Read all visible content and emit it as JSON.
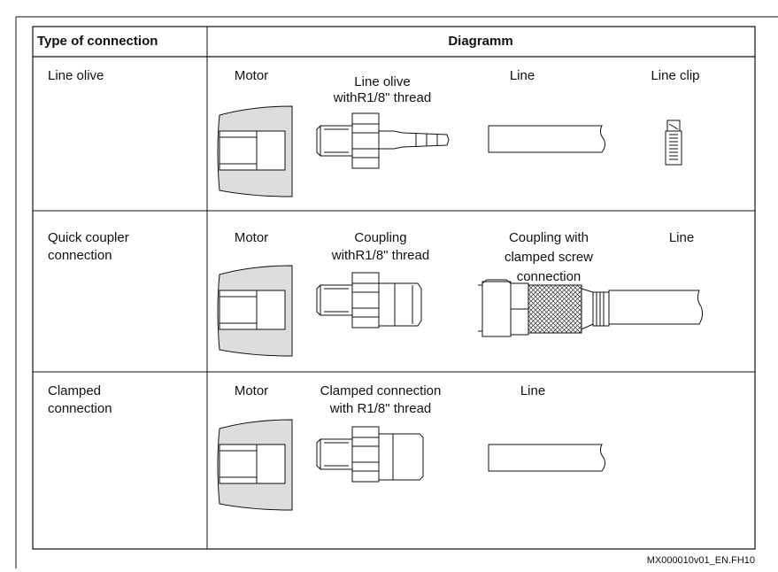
{
  "table": {
    "header": [
      "Type of connection",
      "Diagramm"
    ],
    "rows": [
      {
        "type": [
          "Line olive"
        ],
        "labels": [
          [
            "Motor"
          ],
          [
            "Line olive",
            "withR1/8\" thread"
          ],
          [
            "Line"
          ],
          [
            "Line clip"
          ]
        ]
      },
      {
        "type": [
          "Quick coupler",
          "connection"
        ],
        "labels": [
          [
            "Motor"
          ],
          [
            "Coupling",
            "withR1/8\" thread"
          ],
          [
            "Coupling with",
            "clamped screw",
            "connection"
          ],
          [
            "Line"
          ]
        ]
      },
      {
        "type": [
          "Clamped",
          "connection"
        ],
        "labels": [
          [
            "Motor"
          ],
          [
            "Clamped connection",
            " with  R1/8\" thread"
          ],
          [
            "Line"
          ]
        ]
      }
    ]
  },
  "footer": "MX000010v01_EN.FH10"
}
